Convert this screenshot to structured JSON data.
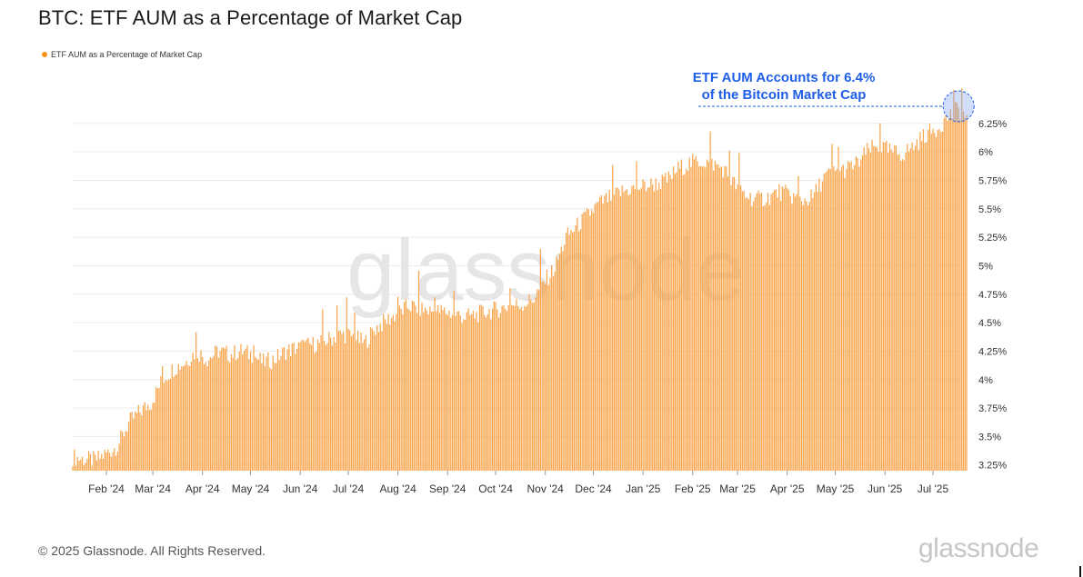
{
  "title": "BTC: ETF AUM as a Percentage of Market Cap",
  "legend": {
    "label": "ETF AUM as a Percentage of Market Cap",
    "color": "#f7931a"
  },
  "annotation": {
    "line1": "ETF AUM Accounts for 6.4%",
    "line2": "of the Bitcoin Market Cap",
    "color": "#1f5ee6"
  },
  "watermark": "glassnode",
  "footer": {
    "copyright": "© 2025 Glassnode. All Rights Reserved.",
    "logo": "glassnode"
  },
  "colors": {
    "bar": "#f7a44a",
    "bar_edge": "#f28c1c",
    "grid": "#ececec",
    "annotation": "#1f5ee6"
  },
  "chart_data": {
    "type": "bar",
    "title": "BTC: ETF AUM as a Percentage of Market Cap",
    "xlabel": "",
    "ylabel": "",
    "ylim": [
      3.2,
      6.4
    ],
    "y_axis_position": "right",
    "yticks": [
      "3.25%",
      "3.5%",
      "3.75%",
      "4%",
      "4.25%",
      "4.5%",
      "4.75%",
      "5%",
      "5.25%",
      "5.5%",
      "5.75%",
      "6%",
      "6.25%"
    ],
    "ytick_values": [
      3.25,
      3.5,
      3.75,
      4.0,
      4.25,
      4.5,
      4.75,
      5.0,
      5.25,
      5.5,
      5.75,
      6.0,
      6.25
    ],
    "xticks": [
      "Feb '24",
      "Mar '24",
      "Apr '24",
      "May '24",
      "Jun '24",
      "Jul '24",
      "Aug '24",
      "Sep '24",
      "Oct '24",
      "Nov '24",
      "Dec '24",
      "Jan '25",
      "Feb '25",
      "Mar '25",
      "Apr '25",
      "May '25",
      "Jun '25",
      "Jul '25"
    ],
    "xtick_dates": [
      "2024-02-01",
      "2024-03-01",
      "2024-04-01",
      "2024-05-01",
      "2024-06-01",
      "2024-07-01",
      "2024-08-01",
      "2024-09-01",
      "2024-10-01",
      "2024-11-01",
      "2024-12-01",
      "2025-01-01",
      "2025-02-01",
      "2025-03-01",
      "2025-04-01",
      "2025-05-01",
      "2025-06-01",
      "2025-07-01"
    ],
    "grid": true,
    "legend_placement": "top-left",
    "series": [
      {
        "name": "ETF AUM as a Percentage of Market Cap",
        "points": [
          [
            "2024-01-11",
            3.32
          ],
          [
            "2024-01-18",
            3.3
          ],
          [
            "2024-01-25",
            3.29
          ],
          [
            "2024-02-01",
            3.35
          ],
          [
            "2024-02-08",
            3.42
          ],
          [
            "2024-02-15",
            3.62
          ],
          [
            "2024-02-22",
            3.72
          ],
          [
            "2024-02-29",
            3.8
          ],
          [
            "2024-03-07",
            4.0
          ],
          [
            "2024-03-14",
            4.1
          ],
          [
            "2024-03-21",
            4.15
          ],
          [
            "2024-03-28",
            4.25
          ],
          [
            "2024-04-04",
            4.18
          ],
          [
            "2024-04-11",
            4.25
          ],
          [
            "2024-04-18",
            4.22
          ],
          [
            "2024-04-25",
            4.25
          ],
          [
            "2024-05-02",
            4.22
          ],
          [
            "2024-05-09",
            4.15
          ],
          [
            "2024-05-16",
            4.18
          ],
          [
            "2024-05-23",
            4.25
          ],
          [
            "2024-05-30",
            4.28
          ],
          [
            "2024-06-06",
            4.3
          ],
          [
            "2024-06-13",
            4.32
          ],
          [
            "2024-06-20",
            4.36
          ],
          [
            "2024-06-27",
            4.4
          ],
          [
            "2024-07-04",
            4.38
          ],
          [
            "2024-07-11",
            4.32
          ],
          [
            "2024-07-18",
            4.45
          ],
          [
            "2024-07-25",
            4.52
          ],
          [
            "2024-08-01",
            4.58
          ],
          [
            "2024-08-08",
            4.65
          ],
          [
            "2024-08-15",
            4.62
          ],
          [
            "2024-08-22",
            4.6
          ],
          [
            "2024-08-29",
            4.6
          ],
          [
            "2024-09-05",
            4.58
          ],
          [
            "2024-09-12",
            4.55
          ],
          [
            "2024-09-19",
            4.57
          ],
          [
            "2024-09-26",
            4.6
          ],
          [
            "2024-10-03",
            4.62
          ],
          [
            "2024-10-10",
            4.65
          ],
          [
            "2024-10-17",
            4.66
          ],
          [
            "2024-10-24",
            4.7
          ],
          [
            "2024-10-31",
            4.85
          ],
          [
            "2024-11-07",
            4.98
          ],
          [
            "2024-11-14",
            5.25
          ],
          [
            "2024-11-21",
            5.35
          ],
          [
            "2024-11-28",
            5.45
          ],
          [
            "2024-12-05",
            5.55
          ],
          [
            "2024-12-12",
            5.6
          ],
          [
            "2024-12-19",
            5.65
          ],
          [
            "2024-12-26",
            5.68
          ],
          [
            "2025-01-02",
            5.7
          ],
          [
            "2025-01-09",
            5.72
          ],
          [
            "2025-01-16",
            5.75
          ],
          [
            "2025-01-23",
            5.85
          ],
          [
            "2025-01-30",
            5.9
          ],
          [
            "2025-02-06",
            5.92
          ],
          [
            "2025-02-13",
            5.9
          ],
          [
            "2025-02-20",
            5.85
          ],
          [
            "2025-02-27",
            5.72
          ],
          [
            "2025-03-06",
            5.62
          ],
          [
            "2025-03-13",
            5.58
          ],
          [
            "2025-03-20",
            5.6
          ],
          [
            "2025-03-27",
            5.65
          ],
          [
            "2025-04-03",
            5.62
          ],
          [
            "2025-04-10",
            5.57
          ],
          [
            "2025-04-17",
            5.6
          ],
          [
            "2025-04-24",
            5.78
          ],
          [
            "2025-05-01",
            5.82
          ],
          [
            "2025-05-08",
            5.85
          ],
          [
            "2025-05-15",
            5.9
          ],
          [
            "2025-05-22",
            6.02
          ],
          [
            "2025-05-29",
            6.05
          ],
          [
            "2025-06-05",
            6.0
          ],
          [
            "2025-06-12",
            5.98
          ],
          [
            "2025-06-19",
            6.05
          ],
          [
            "2025-06-26",
            6.15
          ],
          [
            "2025-07-03",
            6.2
          ],
          [
            "2025-07-10",
            6.3
          ],
          [
            "2025-07-17",
            6.38
          ],
          [
            "2025-07-22",
            6.3
          ]
        ]
      }
    ],
    "annotations": [
      {
        "text": "ETF AUM Accounts for 6.4% of the Bitcoin Market Cap",
        "x": "2025-07-17",
        "y": 6.4
      }
    ]
  }
}
